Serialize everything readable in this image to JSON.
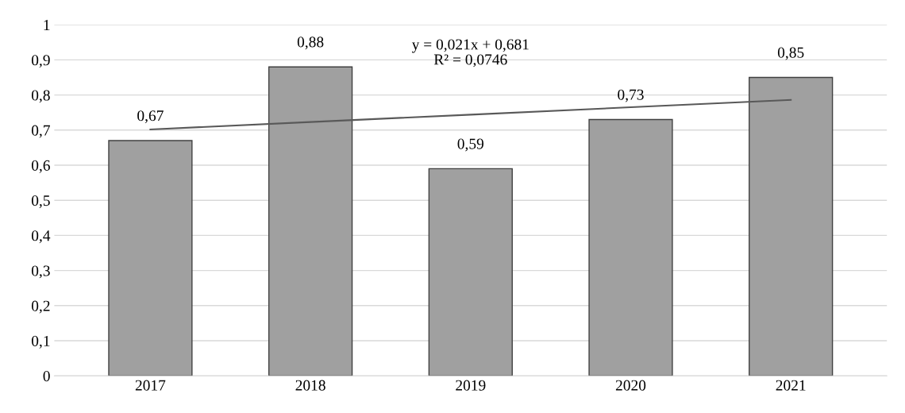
{
  "chart_data": {
    "type": "bar",
    "categories": [
      "2017",
      "2018",
      "2019",
      "2020",
      "2021"
    ],
    "series": [
      {
        "color": "#a0a0a0",
        "values": [
          0.67,
          0.88,
          0.59,
          0.73,
          0.85
        ],
        "value_labels": [
          "0,67",
          "0,88",
          "0,59",
          "0,73",
          "0,85"
        ]
      },
      {
        "type": "line",
        "color": "#595959",
        "values": [
          0.702,
          0.723,
          0.744,
          0.765,
          0.786
        ]
      }
    ],
    "ylim": [
      0,
      1
    ],
    "yticks": [
      {
        "value": 0,
        "label": "0"
      },
      {
        "value": 0.1,
        "label": "0,1"
      },
      {
        "value": 0.2,
        "label": "0,2"
      },
      {
        "value": 0.3,
        "label": "0,3"
      },
      {
        "value": 0.4,
        "label": "0,4"
      },
      {
        "value": 0.5,
        "label": "0,5"
      },
      {
        "value": 0.6,
        "label": "0,6"
      },
      {
        "value": 0.7,
        "label": "0,7"
      },
      {
        "value": 0.8,
        "label": "0,8"
      },
      {
        "value": 0.9,
        "label": "0,9"
      },
      {
        "value": 1,
        "label": "1"
      }
    ],
    "grid": "y",
    "legend": false,
    "annotations": [
      "y = 0,021x + 0,681\nR² = 0,0746"
    ]
  }
}
